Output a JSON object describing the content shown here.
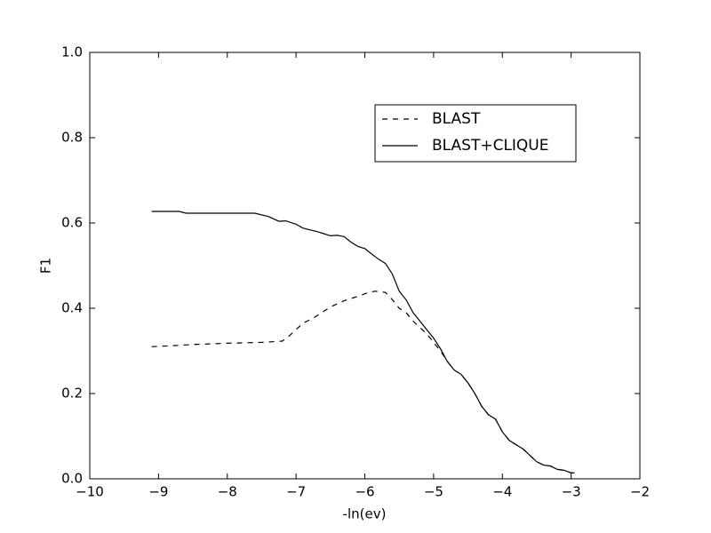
{
  "chart_data": {
    "type": "line",
    "xlabel": "-ln(ev)",
    "ylabel": "F1",
    "xlim": [
      -10,
      -2
    ],
    "ylim": [
      0,
      1
    ],
    "xticks": [
      {
        "value": -10,
        "label": "−10"
      },
      {
        "value": -9,
        "label": "−9"
      },
      {
        "value": -8,
        "label": "−8"
      },
      {
        "value": -7,
        "label": "−7"
      },
      {
        "value": -6,
        "label": "−6"
      },
      {
        "value": -5,
        "label": "−5"
      },
      {
        "value": -4,
        "label": "−4"
      },
      {
        "value": -3,
        "label": "−3"
      },
      {
        "value": -2,
        "label": "−2"
      }
    ],
    "yticks": [
      {
        "value": 0,
        "label": "0.0"
      },
      0.2,
      0.4,
      0.6,
      0.8,
      {
        "value": 1,
        "label": "1.0"
      }
    ],
    "legend": "upper right",
    "series": [
      {
        "name": "BLAST",
        "color": "#000000",
        "linestyle": "dashed",
        "x": [
          -9.1,
          -8.8,
          -8.5,
          -8.0,
          -7.5,
          -7.2,
          -7.1,
          -7.0,
          -6.9,
          -6.75,
          -6.5,
          -6.3,
          -6.1,
          -5.95,
          -5.85,
          -5.7,
          -5.6,
          -5.5,
          -5.4,
          -5.3,
          -5.2,
          -5.1,
          -5.0,
          -4.9,
          -4.8,
          -4.7,
          -4.6,
          -4.5,
          -4.4,
          -4.3,
          -4.2,
          -4.1,
          -4.0,
          -3.9,
          -3.8,
          -3.7,
          -3.6,
          -3.5,
          -3.4,
          -3.3,
          -3.2,
          -3.1,
          -3.0,
          -2.95
        ],
        "values": [
          0.31,
          0.312,
          0.315,
          0.318,
          0.32,
          0.323,
          0.335,
          0.35,
          0.365,
          0.377,
          0.403,
          0.418,
          0.428,
          0.437,
          0.44,
          0.437,
          0.42,
          0.4,
          0.39,
          0.37,
          0.355,
          0.34,
          0.32,
          0.3,
          0.275,
          0.255,
          0.245,
          0.225,
          0.2,
          0.17,
          0.15,
          0.14,
          0.11,
          0.09,
          0.08,
          0.07,
          0.055,
          0.04,
          0.032,
          0.03,
          0.022,
          0.02,
          0.014,
          0.014
        ]
      },
      {
        "name": "BLAST+CLIQUE",
        "color": "#000000",
        "linestyle": "solid",
        "x": [
          -9.1,
          -8.7,
          -8.6,
          -8.0,
          -7.6,
          -7.4,
          -7.25,
          -7.15,
          -7.0,
          -6.9,
          -6.7,
          -6.6,
          -6.5,
          -6.4,
          -6.3,
          -6.2,
          -6.1,
          -6.0,
          -5.9,
          -5.8,
          -5.7,
          -5.6,
          -5.5,
          -5.4,
          -5.3,
          -5.2,
          -5.1,
          -5.0,
          -4.9,
          -4.8,
          -4.7,
          -4.6,
          -4.5,
          -4.4,
          -4.3,
          -4.2,
          -4.1,
          -4.0,
          -3.9,
          -3.8,
          -3.7,
          -3.6,
          -3.5,
          -3.4,
          -3.3,
          -3.2,
          -3.1,
          -3.0,
          -2.95
        ],
        "values": [
          0.627,
          0.627,
          0.623,
          0.623,
          0.623,
          0.615,
          0.604,
          0.605,
          0.597,
          0.588,
          0.58,
          0.575,
          0.57,
          0.571,
          0.568,
          0.555,
          0.545,
          0.54,
          0.527,
          0.515,
          0.505,
          0.48,
          0.44,
          0.42,
          0.39,
          0.37,
          0.35,
          0.33,
          0.305,
          0.275,
          0.255,
          0.245,
          0.225,
          0.2,
          0.17,
          0.15,
          0.14,
          0.11,
          0.09,
          0.08,
          0.07,
          0.055,
          0.04,
          0.032,
          0.03,
          0.022,
          0.02,
          0.014,
          0.014
        ]
      }
    ]
  }
}
